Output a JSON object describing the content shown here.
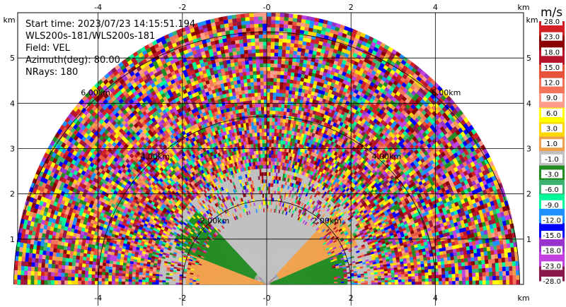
{
  "info": {
    "start_time": "Start time: 2023/07/23 14:15:51.194",
    "instrument": "WLS200s-181/WLS200s-181",
    "field": "Field: VEL",
    "azimuth": "Azimuth(deg): 80.00",
    "nrays": "NRays: 180"
  },
  "chart_data": {
    "type": "heatmap",
    "projection": "RHI half-disk (polar sector)",
    "x_unit": "km",
    "y_unit": "km",
    "x_ticks": [
      "-4",
      "-2",
      "-0",
      "2",
      "4"
    ],
    "x_tick_values": [
      -4,
      -2,
      0,
      2,
      4
    ],
    "y_ticks": [
      "1",
      "2",
      "3",
      "4",
      "5"
    ],
    "y_tick_values": [
      1,
      2,
      3,
      4,
      5
    ],
    "xlim": [
      -6,
      6
    ],
    "ylim": [
      0,
      6
    ],
    "grid": true,
    "range_rings": [
      {
        "range_km": 2,
        "label": "2.00km"
      },
      {
        "range_km": 4,
        "label": "4.00km"
      },
      {
        "range_km": 6,
        "label": "6.00km"
      }
    ],
    "max_range_km": 6,
    "colorbar": {
      "unit": "m/s",
      "tick_labels": [
        "28.0",
        "23.0",
        "18.0",
        "15.0",
        "12.0",
        "9.0",
        "6.0",
        "3.0",
        "1.0",
        "-1.0",
        "-3.0",
        "-6.0",
        "-9.0",
        "-12.0",
        "-15.0",
        "-18.0",
        "-23.0",
        "-28.0"
      ],
      "colors": [
        "#d41f26",
        "#8b0000",
        "#b5132b",
        "#e8533c",
        "#f3745a",
        "#ff9c8c",
        "#ffff00",
        "#ffd700",
        "#f0a04a",
        "#c0c0c0",
        "#228b22",
        "#3cb371",
        "#00fa9a",
        "#1e90ff",
        "#0000ff",
        "#9932cc",
        "#c040e0",
        "#8b1a4a"
      ]
    },
    "velocity_zones_description_free": [
      {
        "theta_deg": [
          0,
          22
        ],
        "range_km": [
          0.1,
          1.9
        ],
        "velocity_ms": -2
      },
      {
        "theta_deg": [
          22,
          45
        ],
        "range_km": [
          0.3,
          2.3
        ],
        "velocity_ms": 2
      },
      {
        "theta_deg": [
          45,
          135
        ],
        "range_km": [
          0.0,
          2.0
        ],
        "velocity_ms": 0
      },
      {
        "theta_deg": [
          135,
          160
        ],
        "range_km": [
          0.3,
          2.3
        ],
        "velocity_ms": -2
      },
      {
        "theta_deg": [
          160,
          180
        ],
        "range_km": [
          0.1,
          1.9
        ],
        "velocity_ms": 2
      }
    ]
  }
}
